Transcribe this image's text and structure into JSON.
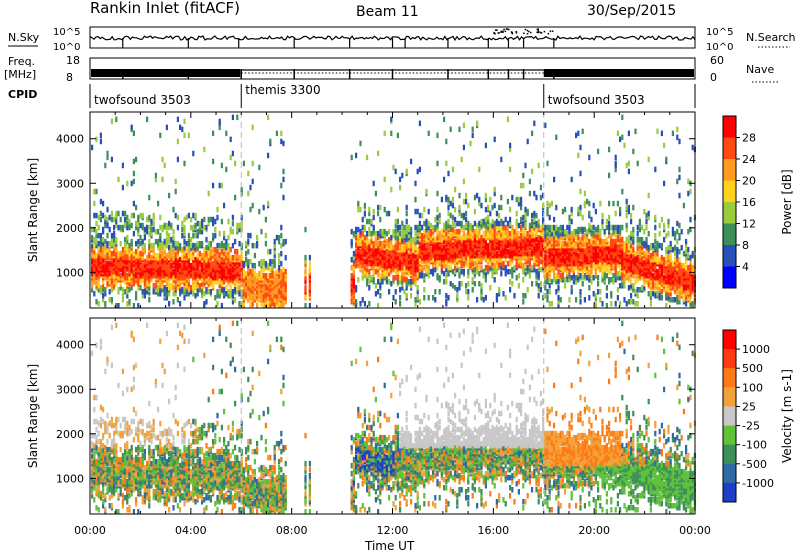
{
  "header": {
    "title": "Rankin Inlet (fitACF)",
    "beam": "Beam 11",
    "date": "30/Sep/2015"
  },
  "top_panels": {
    "nsky_label": "N.Sky",
    "nsky_ticks": [
      "10^5",
      "10^0"
    ],
    "nsearch_label": "N.Search",
    "freq_label_1": "Freq.",
    "freq_label_2": "[MHz]",
    "freq_ticks": [
      "18",
      "8"
    ],
    "nave_label": "Nave",
    "nave_ticks": [
      "60",
      "0"
    ],
    "cpid_label": "CPID",
    "cpid_segments": [
      {
        "label": "twofsound 3503",
        "start_hour": 0
      },
      {
        "label": "themis 3300",
        "start_hour": 6
      },
      {
        "label": "twofsound 3503",
        "start_hour": 18
      }
    ]
  },
  "chart_data": [
    {
      "type": "heatmap",
      "name": "power-panel",
      "ylabel": "Slant Range [km]",
      "ylim": [
        200,
        4600
      ],
      "yticks": [
        1000,
        2000,
        3000,
        4000
      ],
      "xlim": [
        0,
        24
      ],
      "colorbar_label": "Power [dB]",
      "colorbar_ticks": [
        "28",
        "24",
        "20",
        "16",
        "12",
        "8",
        "4"
      ],
      "colors": [
        "#0000ff",
        "#2850b8",
        "#3f8f5a",
        "#9acc3c",
        "#ffd21e",
        "#ff9b1e",
        "#ff4a12",
        "#ff0000"
      ]
    },
    {
      "type": "heatmap",
      "name": "velocity-panel",
      "ylabel": "Slant Range [km]",
      "ylim": [
        200,
        4600
      ],
      "yticks": [
        1000,
        2000,
        3000,
        4000
      ],
      "xlim": [
        0,
        24
      ],
      "xticks": [
        "00:00",
        "04:00",
        "08:00",
        "12:00",
        "16:00",
        "20:00",
        "00:00"
      ],
      "xlabel": "Time UT",
      "colorbar_label": "Velocity [m s-1]",
      "colorbar_ticks": [
        "1000",
        "500",
        "100",
        "25",
        "-25",
        "-100",
        "-500",
        "-1000"
      ],
      "colors": [
        "#1f3fc8",
        "#2f6aa5",
        "#3f8f5a",
        "#5ec23a",
        "#c8c8c8",
        "#f1a33a",
        "#ff7a14",
        "#ff3a10",
        "#ff0000"
      ]
    }
  ]
}
